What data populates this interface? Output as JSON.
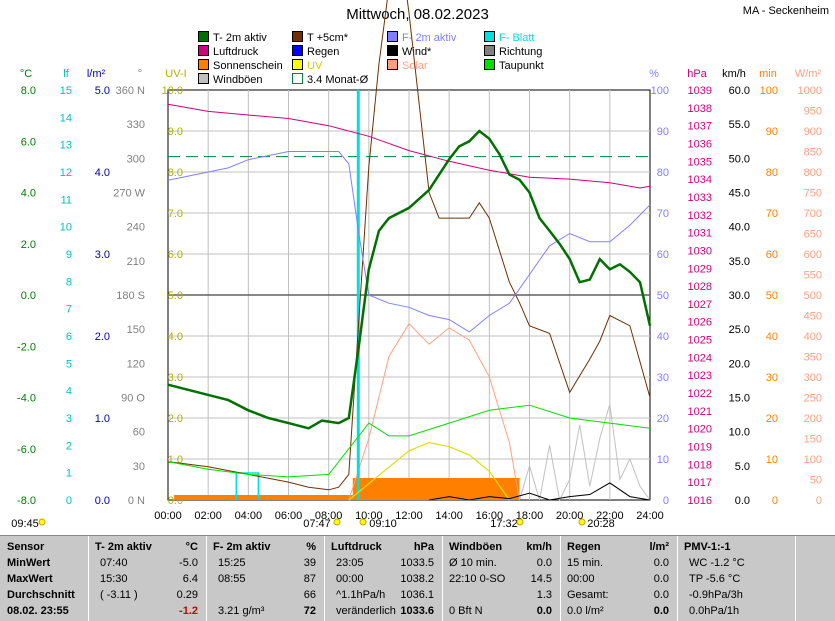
{
  "title": "Mittwoch, 08.02.2023",
  "location": "MA - Seckenheim",
  "legend": [
    {
      "label": "T- 2m aktiv",
      "color": "#007000"
    },
    {
      "label": "T +5cm*",
      "color": "#703000"
    },
    {
      "label": "F- 2m aktiv",
      "color": "#8080ff"
    },
    {
      "label": "F- Blatt",
      "color": "#00e0e0"
    },
    {
      "label": "Luftdruck",
      "color": "#d0007f"
    },
    {
      "label": "Regen",
      "color": "#0000ff"
    },
    {
      "label": "Wind*",
      "color": "#000000"
    },
    {
      "label": "Richtung",
      "color": "#808080"
    },
    {
      "label": "Sonnenschein",
      "color": "#ff8000"
    },
    {
      "label": "UV",
      "color": "#ffff00"
    },
    {
      "label": "Solar",
      "color": "#ffa080"
    },
    {
      "label": "Taupunkt",
      "color": "#00e000"
    },
    {
      "label": "Windböen",
      "color": "#c0c0c0"
    },
    {
      "label": "3.4 Monat-Ø",
      "color": "#008040"
    }
  ],
  "axes": {
    "temp": {
      "unit": "°C",
      "color": "#008000",
      "ticks": [
        "8.0",
        "6.0",
        "4.0",
        "2.0",
        "0.0",
        "-2.0",
        "-4.0",
        "-6.0",
        "-8.0"
      ]
    },
    "leaf": {
      "unit": "lf",
      "color": "#00c0c0",
      "ticks": [
        "15",
        "14",
        "13",
        "12",
        "11",
        "10",
        "9",
        "8",
        "7",
        "6",
        "5",
        "4",
        "3",
        "2",
        "1",
        "0"
      ]
    },
    "rain": {
      "unit": "l/m²",
      "color": "#0000c0",
      "ticks": [
        "5.0",
        "4.0",
        "3.0",
        "2.0",
        "1.0",
        "0.0"
      ]
    },
    "dir": {
      "unit": "°",
      "color": "#808080",
      "ticks": [
        "360 N",
        "330",
        "300",
        "270 W",
        "240",
        "210",
        "180 S",
        "150",
        "120",
        "90 O",
        "60",
        "30",
        "0 N"
      ]
    },
    "uv": {
      "unit": "UV-I",
      "color": "#b0b000",
      "ticks": [
        "10.0",
        "9.0",
        "8.0",
        "7.0",
        "6.0",
        "5.0",
        "4.0",
        "3.0",
        "2.0",
        "1.0",
        "0.0"
      ]
    },
    "hum": {
      "unit": "%",
      "color": "#8080ff",
      "ticks": [
        "100",
        "90",
        "80",
        "70",
        "60",
        "50",
        "40",
        "30",
        "20",
        "10",
        "0"
      ]
    },
    "press": {
      "unit": "hPa",
      "color": "#d0007f",
      "ticks": [
        "1039",
        "1038",
        "1037",
        "1036",
        "1035",
        "1034",
        "1033",
        "1032",
        "1031",
        "1030",
        "1029",
        "1028",
        "1027",
        "1026",
        "1025",
        "1024",
        "1023",
        "1022",
        "1021",
        "1020",
        "1019",
        "1018",
        "1017",
        "1016"
      ]
    },
    "wind": {
      "unit": "km/h",
      "color": "#000000",
      "ticks": [
        "60.0",
        "55.0",
        "50.0",
        "45.0",
        "40.0",
        "35.0",
        "30.0",
        "25.0",
        "20.0",
        "15.0",
        "10.0",
        "5.0",
        "0.0"
      ]
    },
    "sun": {
      "unit": "min",
      "color": "#ff8000",
      "ticks": [
        "100",
        "90",
        "80",
        "70",
        "60",
        "50",
        "40",
        "30",
        "20",
        "10",
        "0"
      ]
    },
    "solar": {
      "unit": "W/m²",
      "color": "#ffa080",
      "ticks": [
        "1000",
        "950",
        "900",
        "850",
        "800",
        "750",
        "700",
        "650",
        "600",
        "550",
        "500",
        "450",
        "400",
        "350",
        "300",
        "250",
        "200",
        "150",
        "100",
        "50",
        "0"
      ]
    }
  },
  "xaxis": {
    "ticks": [
      "00:00",
      "02:00",
      "04:00",
      "06:00",
      "08:00",
      "10:00",
      "12:00",
      "14:00",
      "16:00",
      "18:00",
      "20:00",
      "22:00",
      "24:00"
    ]
  },
  "markers": {
    "sunrise": "09:45",
    "t1": "07:47",
    "t2": "09:10",
    "t3": "17:32",
    "t4": "20:28"
  },
  "chart_data": {
    "type": "line",
    "x_range": [
      0,
      24
    ],
    "monthly_avg_temp": 5.4,
    "series": [
      {
        "name": "T- 2m aktiv",
        "unit": "°C",
        "x": [
          0,
          1,
          2,
          3,
          4,
          5,
          6,
          7,
          7.67,
          8.5,
          9,
          9.5,
          10,
          10.5,
          11,
          12,
          13,
          14,
          14.5,
          15,
          15.5,
          16,
          16.5,
          17,
          17.5,
          18,
          18.5,
          19,
          19.5,
          20,
          20.5,
          21,
          21.5,
          22,
          22.5,
          23,
          23.5,
          24
        ],
        "y": [
          -3.5,
          -3.7,
          -3.9,
          -4.1,
          -4.5,
          -4.8,
          -5.0,
          -5.2,
          -4.9,
          -5.0,
          -4.8,
          -2.0,
          1.0,
          2.5,
          3.0,
          3.4,
          4.1,
          5.3,
          5.8,
          6.0,
          6.4,
          6.1,
          5.5,
          4.7,
          4.5,
          4.0,
          3.0,
          2.5,
          2.0,
          1.4,
          0.5,
          0.6,
          1.4,
          1.0,
          1.2,
          0.9,
          0.5,
          -1.2
        ]
      },
      {
        "name": "F- 2m aktiv",
        "unit": "%",
        "x": [
          0,
          1,
          2,
          3,
          4,
          5,
          6,
          7,
          8,
          8.5,
          9,
          9.5,
          10,
          11,
          12,
          13,
          14,
          15,
          15.5,
          16,
          17,
          18,
          19,
          20,
          21,
          22,
          23,
          24
        ],
        "y": [
          78,
          79,
          80,
          81,
          83,
          84,
          85,
          85,
          85,
          85,
          82,
          65,
          50,
          48,
          47,
          45,
          44,
          41,
          43,
          45,
          48,
          55,
          62,
          65,
          63,
          63,
          67,
          72
        ]
      },
      {
        "name": "Luftdruck",
        "unit": "hPa",
        "x": [
          0,
          2,
          4,
          6,
          8,
          10,
          12,
          14,
          16,
          18,
          20,
          22,
          23.5,
          24
        ],
        "y": [
          1038.2,
          1037.8,
          1037.6,
          1037.4,
          1037.0,
          1036.4,
          1035.6,
          1035.0,
          1034.5,
          1034.1,
          1034.0,
          1033.8,
          1033.5,
          1033.6
        ]
      },
      {
        "name": "Taupunkt",
        "unit": "°C",
        "x": [
          0,
          2,
          4,
          6,
          8,
          9,
          10,
          11,
          12,
          14,
          16,
          18,
          20,
          22,
          24
        ],
        "y": [
          -6.5,
          -6.8,
          -7.0,
          -7.1,
          -7.0,
          -6.0,
          -5.0,
          -5.5,
          -5.5,
          -5.0,
          -4.5,
          -4.3,
          -4.8,
          -5.0,
          -5.2
        ]
      }
    ]
  },
  "table": {
    "columns": [
      {
        "header": "Sensor",
        "unit": "",
        "rows": [
          [
            "MinWert",
            ""
          ],
          [
            "MaxWert",
            ""
          ],
          [
            "Durchschnitt",
            ""
          ],
          [
            "08.02. 23:55",
            ""
          ]
        ]
      },
      {
        "header": "T- 2m aktiv",
        "unit": "°C",
        "rows": [
          [
            "07:40",
            "-5.0"
          ],
          [
            "15:30",
            "6.4"
          ],
          [
            "( -3.11 )",
            "0.29"
          ],
          [
            "",
            "-1.2"
          ]
        ]
      },
      {
        "header": "F- 2m aktiv",
        "unit": "%",
        "rows": [
          [
            "15:25",
            "39"
          ],
          [
            "08:55",
            "87"
          ],
          [
            "",
            "66"
          ],
          [
            "3.21 g/m³",
            "72"
          ]
        ]
      },
      {
        "header": "Luftdruck",
        "unit": "hPa",
        "rows": [
          [
            "23:05",
            "1033.5"
          ],
          [
            "00:00",
            "1038.2"
          ],
          [
            "^1.1hPa/h",
            "1036.1"
          ],
          [
            "veränderlich",
            "1033.6"
          ]
        ]
      },
      {
        "header": "Windböen",
        "unit": "km/h",
        "rows": [
          [
            "Ø 10 min.",
            "0.0"
          ],
          [
            "22:10    0-SO",
            "14.5"
          ],
          [
            "",
            "1.3"
          ],
          [
            "0 Bft N",
            "0.0"
          ]
        ]
      },
      {
        "header": "Regen",
        "unit": "l/m²",
        "rows": [
          [
            "15 min.",
            "0.0"
          ],
          [
            "00:00",
            "0.0"
          ],
          [
            "Gesamt:",
            "0.0"
          ],
          [
            "0.0 l/m²",
            "0.0"
          ]
        ]
      },
      {
        "header": "PMV-1:-1",
        "unit": "",
        "rows": [
          [
            "WC -1.2 °C",
            ""
          ],
          [
            "TP -5.6 °C",
            ""
          ],
          [
            "-0.9hPa/3h",
            ""
          ],
          [
            "0.0hPa/1h",
            ""
          ]
        ]
      }
    ]
  }
}
